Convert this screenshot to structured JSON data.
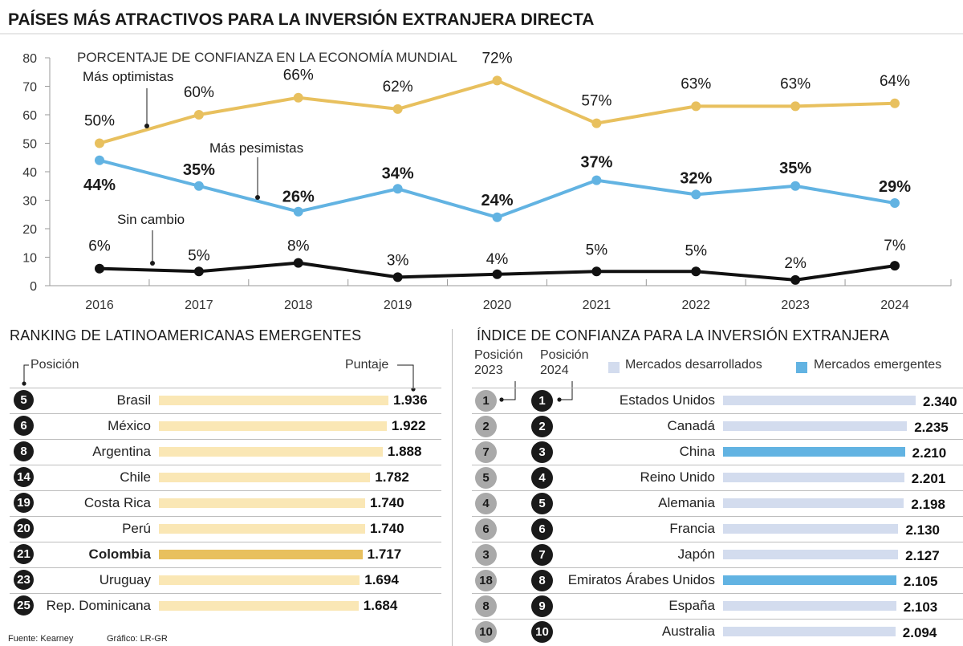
{
  "title": "PAÍSES MÁS ATRACTIVOS PARA LA INVERSIÓN EXTRANJERA DIRECTA",
  "chart_data": [
    {
      "type": "line",
      "title": "PORCENTAJE DE CONFIANZA EN LA ECONOMÍA MUNDIAL",
      "x": [
        "2016",
        "2017",
        "2018",
        "2019",
        "2020",
        "2021",
        "2022",
        "2023",
        "2024"
      ],
      "ylim": [
        0,
        80
      ],
      "yticks": [
        "0",
        "10",
        "20",
        "30",
        "40",
        "50",
        "60",
        "70",
        "80"
      ],
      "grid": false,
      "series": [
        {
          "name": "Más optimistas",
          "color": "#e8c05e",
          "values": [
            50,
            60,
            66,
            62,
            72,
            57,
            63,
            63,
            64
          ],
          "labels": [
            "50%",
            "60%",
            "66%",
            "62%",
            "72%",
            "57%",
            "63%",
            "63%",
            "64%"
          ]
        },
        {
          "name": "Más pesimistas",
          "color": "#62b3e2",
          "values": [
            44,
            35,
            26,
            34,
            24,
            37,
            32,
            35,
            29
          ],
          "labels": [
            "44%",
            "35%",
            "26%",
            "34%",
            "24%",
            "37%",
            "32%",
            "35%",
            "29%"
          ]
        },
        {
          "name": "Sin cambio",
          "color": "#111111",
          "values": [
            6,
            5,
            8,
            3,
            4,
            5,
            5,
            2,
            7
          ],
          "labels": [
            "6%",
            "5%",
            "8%",
            "3%",
            "4%",
            "5%",
            "5%",
            "2%",
            "7%"
          ]
        }
      ]
    },
    {
      "type": "bar",
      "title": "RANKING DE LATINOAMERICANAS EMERGENTES",
      "position_label": "Posición",
      "score_label": "Puntaje",
      "xlim": [
        0,
        1.936
      ],
      "rows": [
        {
          "position": "5",
          "country": "Brasil",
          "value": 1.936,
          "label": "1.936",
          "highlight": false
        },
        {
          "position": "6",
          "country": "México",
          "value": 1.922,
          "label": "1.922",
          "highlight": false
        },
        {
          "position": "8",
          "country": "Argentina",
          "value": 1.888,
          "label": "1.888",
          "highlight": false
        },
        {
          "position": "14",
          "country": "Chile",
          "value": 1.782,
          "label": "1.782",
          "highlight": false
        },
        {
          "position": "19",
          "country": "Costa Rica",
          "value": 1.74,
          "label": "1.740",
          "highlight": false
        },
        {
          "position": "20",
          "country": "Perú",
          "value": 1.74,
          "label": "1.740",
          "highlight": false
        },
        {
          "position": "21",
          "country": "Colombia",
          "value": 1.717,
          "label": "1.717",
          "highlight": true
        },
        {
          "position": "23",
          "country": "Uruguay",
          "value": 1.694,
          "label": "1.694",
          "highlight": false
        },
        {
          "position": "25",
          "country": "Rep. Dominicana",
          "value": 1.684,
          "label": "1.684",
          "highlight": false
        }
      ]
    },
    {
      "type": "bar",
      "title": "ÍNDICE DE CONFIANZA PARA LA INVERSIÓN EXTRANJERA",
      "col_2023": [
        "Posición",
        "2023"
      ],
      "col_2024": [
        "Posición",
        "2024"
      ],
      "legend": [
        {
          "name": "Mercados desarrollados",
          "color": "#d3dcee"
        },
        {
          "name": "Mercados emergentes",
          "color": "#62b3e2"
        }
      ],
      "xlim": [
        0,
        2.34
      ],
      "rows": [
        {
          "pos2023": "1",
          "pos2024": "1",
          "country": "Estados Unidos",
          "value": 2.34,
          "label": "2.340",
          "market": "Mercados desarrollados"
        },
        {
          "pos2023": "2",
          "pos2024": "2",
          "country": "Canadá",
          "value": 2.235,
          "label": "2.235",
          "market": "Mercados desarrollados"
        },
        {
          "pos2023": "7",
          "pos2024": "3",
          "country": "China",
          "value": 2.21,
          "label": "2.210",
          "market": "Mercados emergentes"
        },
        {
          "pos2023": "5",
          "pos2024": "4",
          "country": "Reino Unido",
          "value": 2.201,
          "label": "2.201",
          "market": "Mercados desarrollados"
        },
        {
          "pos2023": "4",
          "pos2024": "5",
          "country": "Alemania",
          "value": 2.198,
          "label": "2.198",
          "market": "Mercados desarrollados"
        },
        {
          "pos2023": "6",
          "pos2024": "6",
          "country": "Francia",
          "value": 2.13,
          "label": "2.130",
          "market": "Mercados desarrollados"
        },
        {
          "pos2023": "3",
          "pos2024": "7",
          "country": "Japón",
          "value": 2.127,
          "label": "2.127",
          "market": "Mercados desarrollados"
        },
        {
          "pos2023": "18",
          "pos2024": "8",
          "country": "Emiratos Árabes Unidos",
          "value": 2.105,
          "label": "2.105",
          "market": "Mercados emergentes"
        },
        {
          "pos2023": "8",
          "pos2024": "9",
          "country": "España",
          "value": 2.103,
          "label": "2.103",
          "market": "Mercados desarrollados"
        },
        {
          "pos2023": "10",
          "pos2024": "10",
          "country": "Australia",
          "value": 2.094,
          "label": "2.094",
          "market": "Mercados desarrollados"
        }
      ]
    }
  ],
  "colors": {
    "latam_bar": "#fae7b5",
    "latam_highlight": "#e8c05e"
  },
  "footer": {
    "source": "Fuente: Kearney",
    "graphic": "Gráfico: LR-GR"
  }
}
